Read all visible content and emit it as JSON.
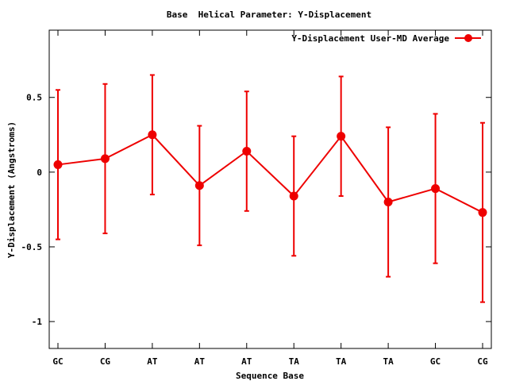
{
  "chart_data": {
    "type": "line",
    "title": "Base  Helical Parameter: Y-Displacement",
    "xlabel": "Sequence Base",
    "ylabel": "Y-Displacement (Angstroms)",
    "categories": [
      "GC",
      "CG",
      "AT",
      "AT",
      "AT",
      "TA",
      "TA",
      "TA",
      "GC",
      "CG"
    ],
    "ylim": [
      -1.18,
      0.95
    ],
    "yticks": [
      -1,
      -0.5,
      0,
      0.5
    ],
    "ytick_labels": [
      "-1",
      "-0.5",
      "0",
      "0.5"
    ],
    "legend_position": "top-right",
    "grid": false,
    "series": [
      {
        "name": "Y-Displacement User-MD Average",
        "color": "#ee0000",
        "values": [
          0.05,
          0.09,
          0.25,
          -0.09,
          0.14,
          -0.16,
          0.24,
          -0.2,
          -0.11,
          -0.27
        ],
        "error_low": [
          -0.45,
          -0.41,
          -0.15,
          -0.49,
          -0.26,
          -0.56,
          -0.16,
          -0.7,
          -0.61,
          -0.87
        ],
        "error_high": [
          0.55,
          0.59,
          0.65,
          0.31,
          0.54,
          0.24,
          0.64,
          0.3,
          0.39,
          0.33
        ]
      }
    ]
  }
}
